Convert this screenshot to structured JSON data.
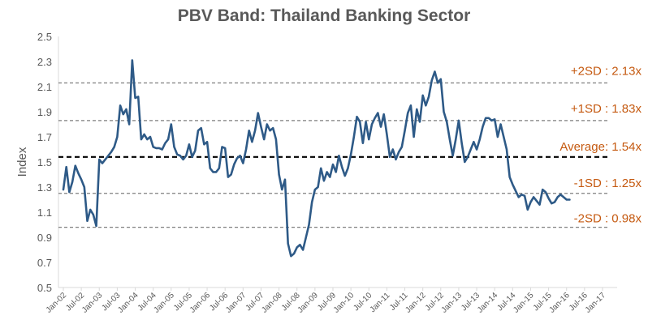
{
  "chart_data": {
    "type": "line",
    "title": "PBV Band: Thailand Banking Sector",
    "xlabel": "",
    "ylabel": "Index",
    "ylim": [
      0.5,
      2.5
    ],
    "yticks": [
      "0.5",
      "0.7",
      "0.9",
      "1.1",
      "1.3",
      "1.5",
      "1.7",
      "1.9",
      "2.1",
      "2.3",
      "2.5"
    ],
    "grid": false,
    "legend": "none",
    "x_tick_labels": [
      "Jan-02",
      "Jul-02",
      "Jan-03",
      "Jul-03",
      "Jan-04",
      "Jul-04",
      "Jan-05",
      "Jul-05",
      "Jan-06",
      "Jul-06",
      "Jan-07",
      "Jul-07",
      "Jan-08",
      "Jul-08",
      "Jan-09",
      "Jul-09",
      "Jan-10",
      "Jul-10",
      "Jan-11",
      "Jul-11",
      "Jan-12",
      "Jul-12",
      "Jan-13",
      "Jul-13",
      "Jan-14",
      "Jul-14",
      "Jan-15",
      "Jul-15",
      "Jan-16",
      "Jul-16",
      "Jan-17"
    ],
    "x_start": "Jan-02",
    "x_interval": "month",
    "series": [
      {
        "color": "#2e5a87",
        "values": [
          1.28,
          1.46,
          1.26,
          1.34,
          1.47,
          1.41,
          1.36,
          1.3,
          1.03,
          1.12,
          1.08,
          0.99,
          1.52,
          1.49,
          1.52,
          1.55,
          1.58,
          1.62,
          1.7,
          1.95,
          1.88,
          1.92,
          1.8,
          2.31,
          2.01,
          2.02,
          1.68,
          1.72,
          1.68,
          1.7,
          1.62,
          1.61,
          1.61,
          1.6,
          1.65,
          1.68,
          1.8,
          1.62,
          1.56,
          1.55,
          1.52,
          1.55,
          1.64,
          1.54,
          1.59,
          1.75,
          1.77,
          1.64,
          1.66,
          1.45,
          1.42,
          1.42,
          1.45,
          1.62,
          1.61,
          1.38,
          1.4,
          1.48,
          1.53,
          1.55,
          1.49,
          1.6,
          1.75,
          1.66,
          1.75,
          1.89,
          1.78,
          1.68,
          1.8,
          1.75,
          1.77,
          1.68,
          1.4,
          1.28,
          1.36,
          0.85,
          0.75,
          0.77,
          0.82,
          0.84,
          0.8,
          0.9,
          1.0,
          1.18,
          1.28,
          1.3,
          1.45,
          1.35,
          1.42,
          1.38,
          1.48,
          1.42,
          1.55,
          1.46,
          1.39,
          1.45,
          1.56,
          1.7,
          1.86,
          1.82,
          1.65,
          1.82,
          1.68,
          1.8,
          1.85,
          1.89,
          1.78,
          1.88,
          1.72,
          1.54,
          1.6,
          1.52,
          1.58,
          1.62,
          1.75,
          1.89,
          1.95,
          1.7,
          1.92,
          1.82,
          2.03,
          1.95,
          2.02,
          2.15,
          2.22,
          2.13,
          2.16,
          1.9,
          1.82,
          1.68,
          1.55,
          1.68,
          1.83,
          1.65,
          1.5,
          1.54,
          1.6,
          1.66,
          1.6,
          1.68,
          1.78,
          1.85,
          1.85,
          1.83,
          1.84,
          1.7,
          1.8,
          1.7,
          1.6,
          1.38,
          1.32,
          1.27,
          1.22,
          1.24,
          1.23,
          1.12,
          1.18,
          1.22,
          1.19,
          1.16,
          1.28,
          1.26,
          1.21,
          1.17,
          1.18,
          1.22,
          1.24,
          1.22,
          1.2,
          1.2
        ]
      }
    ],
    "reference_lines": [
      {
        "value": 2.13,
        "label": "+2SD : 2.13x",
        "style": "dashed",
        "color": "#7f7f7f"
      },
      {
        "value": 1.83,
        "label": "+1SD : 1.83x",
        "style": "dashed",
        "color": "#7f7f7f"
      },
      {
        "value": 1.54,
        "label": "Average: 1.54x",
        "style": "dashed",
        "color": "#000000"
      },
      {
        "value": 1.25,
        "label": "-1SD : 1.25x",
        "style": "dashed",
        "color": "#7f7f7f"
      },
      {
        "value": 0.98,
        "label": "-2SD : 0.98x",
        "style": "dashed",
        "color": "#7f7f7f"
      }
    ],
    "label_color": "#c55a11"
  }
}
